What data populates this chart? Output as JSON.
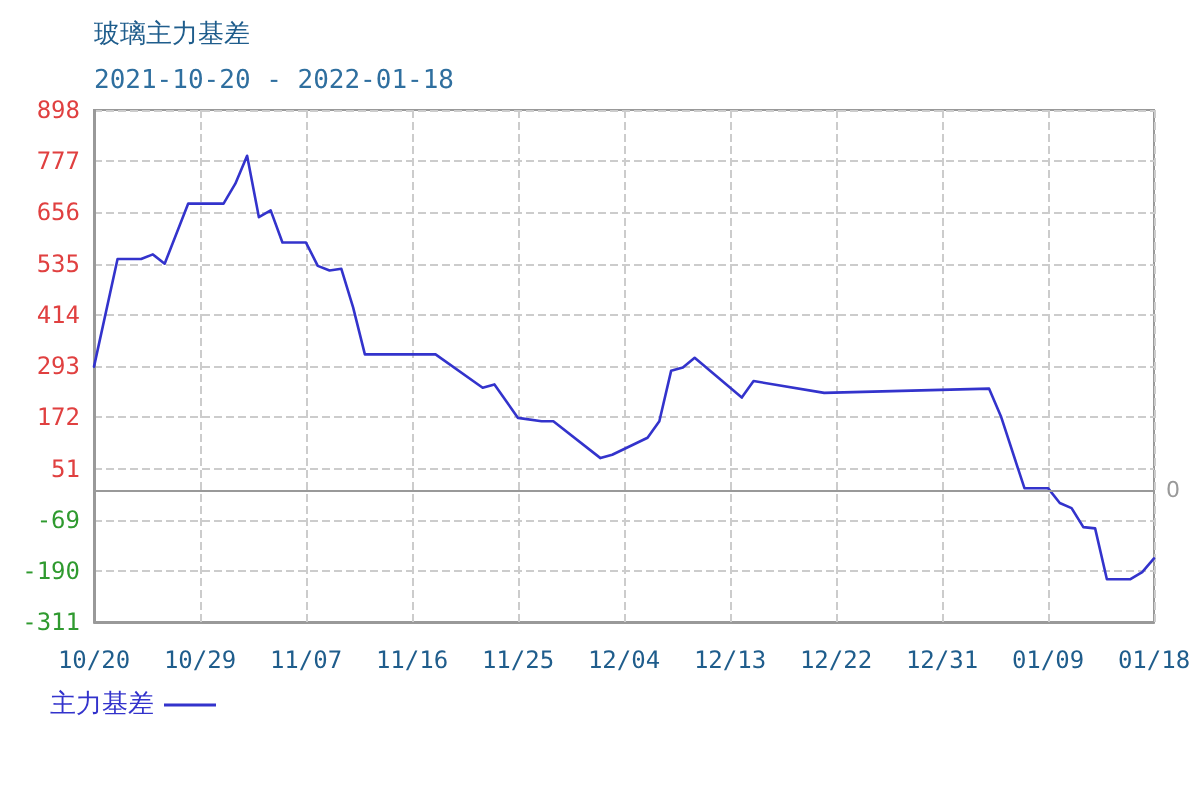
{
  "chart_data": {
    "type": "line",
    "title": "玻璃主力基差",
    "subtitle": "2021-10-20 - 2022-01-18",
    "x": [
      "2021-10-20",
      "2021-10-22",
      "2021-10-24",
      "2021-10-25",
      "2021-10-26",
      "2021-10-28",
      "2021-10-31",
      "2021-11-01",
      "2021-11-02",
      "2021-11-03",
      "2021-11-04",
      "2021-11-05",
      "2021-11-07",
      "2021-11-08",
      "2021-11-09",
      "2021-11-10",
      "2021-11-11",
      "2021-11-12",
      "2021-11-18",
      "2021-11-22",
      "2021-11-23",
      "2021-11-25",
      "2021-11-27",
      "2021-11-28",
      "2021-12-02",
      "2021-12-03",
      "2021-12-06",
      "2021-12-07",
      "2021-12-08",
      "2021-12-09",
      "2021-12-10",
      "2021-12-14",
      "2021-12-15",
      "2021-12-21",
      "2022-01-04",
      "2022-01-05",
      "2022-01-07",
      "2022-01-09",
      "2022-01-10",
      "2022-01-11",
      "2022-01-12",
      "2022-01-13",
      "2022-01-14",
      "2022-01-16",
      "2022-01-17",
      "2022-01-18"
    ],
    "series": [
      {
        "name": "主力基差",
        "color": "#3333cc",
        "values": [
          292,
          546,
          546,
          557,
          535,
          677,
          677,
          724,
          790,
          645,
          661,
          585,
          585,
          530,
          519,
          523,
          432,
          321,
          321,
          242,
          250,
          171,
          163,
          163,
          76,
          84,
          124,
          163,
          282,
          290,
          313,
          219,
          258,
          230,
          240,
          175,
          5,
          5,
          -30,
          -42,
          -87,
          -90,
          -210,
          -210,
          -193,
          -161
        ]
      }
    ],
    "xlim": [
      "2021-10-20",
      "2022-01-18"
    ],
    "xticks": [
      {
        "value": "2021-10-20",
        "label": "10/20"
      },
      {
        "value": "2021-10-29",
        "label": "10/29"
      },
      {
        "value": "2021-11-07",
        "label": "11/07"
      },
      {
        "value": "2021-11-16",
        "label": "11/16"
      },
      {
        "value": "2021-11-25",
        "label": "11/25"
      },
      {
        "value": "2021-12-04",
        "label": "12/04"
      },
      {
        "value": "2021-12-13",
        "label": "12/13"
      },
      {
        "value": "2021-12-22",
        "label": "12/22"
      },
      {
        "value": "2021-12-31",
        "label": "12/31"
      },
      {
        "value": "2022-01-09",
        "label": "01/09"
      },
      {
        "value": "2022-01-18",
        "label": "01/18"
      }
    ],
    "ylim": [
      -311,
      898
    ],
    "yticks": [
      -311,
      -190,
      -69,
      51,
      172,
      293,
      414,
      535,
      656,
      777,
      898
    ],
    "grid": true,
    "legend": "bottom left",
    "marker": "none",
    "line_style": "solid",
    "ref_lines": [
      {
        "axis": "y",
        "value": 0,
        "label": "0",
        "color": "#999999"
      }
    ]
  }
}
